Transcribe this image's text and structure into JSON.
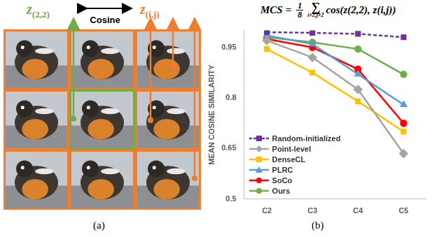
{
  "panel_a": {
    "caption": "(a)",
    "anchor_label": {
      "main": "z",
      "sub": "(2,2)"
    },
    "relation": "Cosine",
    "neighbor_label": {
      "main": "z",
      "sub": "(i,j)"
    }
  },
  "panel_b": {
    "caption": "(b)",
    "formula": {
      "lhs": "MCS",
      "equals": "=",
      "numerator": "1",
      "denominator": "8",
      "sum": "∑",
      "sum_sub": "i≠2,j≠2",
      "body": "cos(z(2,2), z(i,j))"
    }
  },
  "chart_data": {
    "type": "line",
    "y_label": "MEAN COSINE SIMILARITY",
    "categories": [
      "C2",
      "C3",
      "C4",
      "C5"
    ],
    "series": [
      {
        "name": "Random-initialized",
        "color": "#7030a0",
        "marker": "square",
        "line_style": "dashed",
        "values": [
          0.995,
          0.993,
          0.99,
          0.98
        ]
      },
      {
        "name": "Point-level",
        "color": "#a5a5a5",
        "marker": "diamond",
        "line_style": "solid",
        "values": [
          0.97,
          0.92,
          0.825,
          0.635
        ]
      },
      {
        "name": "DenseCL",
        "color": "#ffc000",
        "marker": "square",
        "line_style": "solid",
        "values": [
          0.945,
          0.875,
          0.79,
          0.7
        ]
      },
      {
        "name": "PLRC",
        "color": "#5b9bd5",
        "marker": "triangle",
        "line_style": "solid",
        "values": [
          0.985,
          0.96,
          0.87,
          0.78
        ]
      },
      {
        "name": "SoCo",
        "color": "#ff0000",
        "marker": "circle",
        "line_style": "solid",
        "values": [
          0.975,
          0.95,
          0.885,
          0.725
        ]
      },
      {
        "name": "Ours",
        "color": "#70ad47",
        "marker": "circle",
        "line_style": "solid",
        "values": [
          0.98,
          0.965,
          0.945,
          0.87
        ]
      }
    ],
    "ylim": [
      0.5,
      1.0
    ],
    "yticks": [
      0.5,
      0.65,
      0.8,
      0.95
    ],
    "grid": false,
    "legend": "lower left"
  }
}
